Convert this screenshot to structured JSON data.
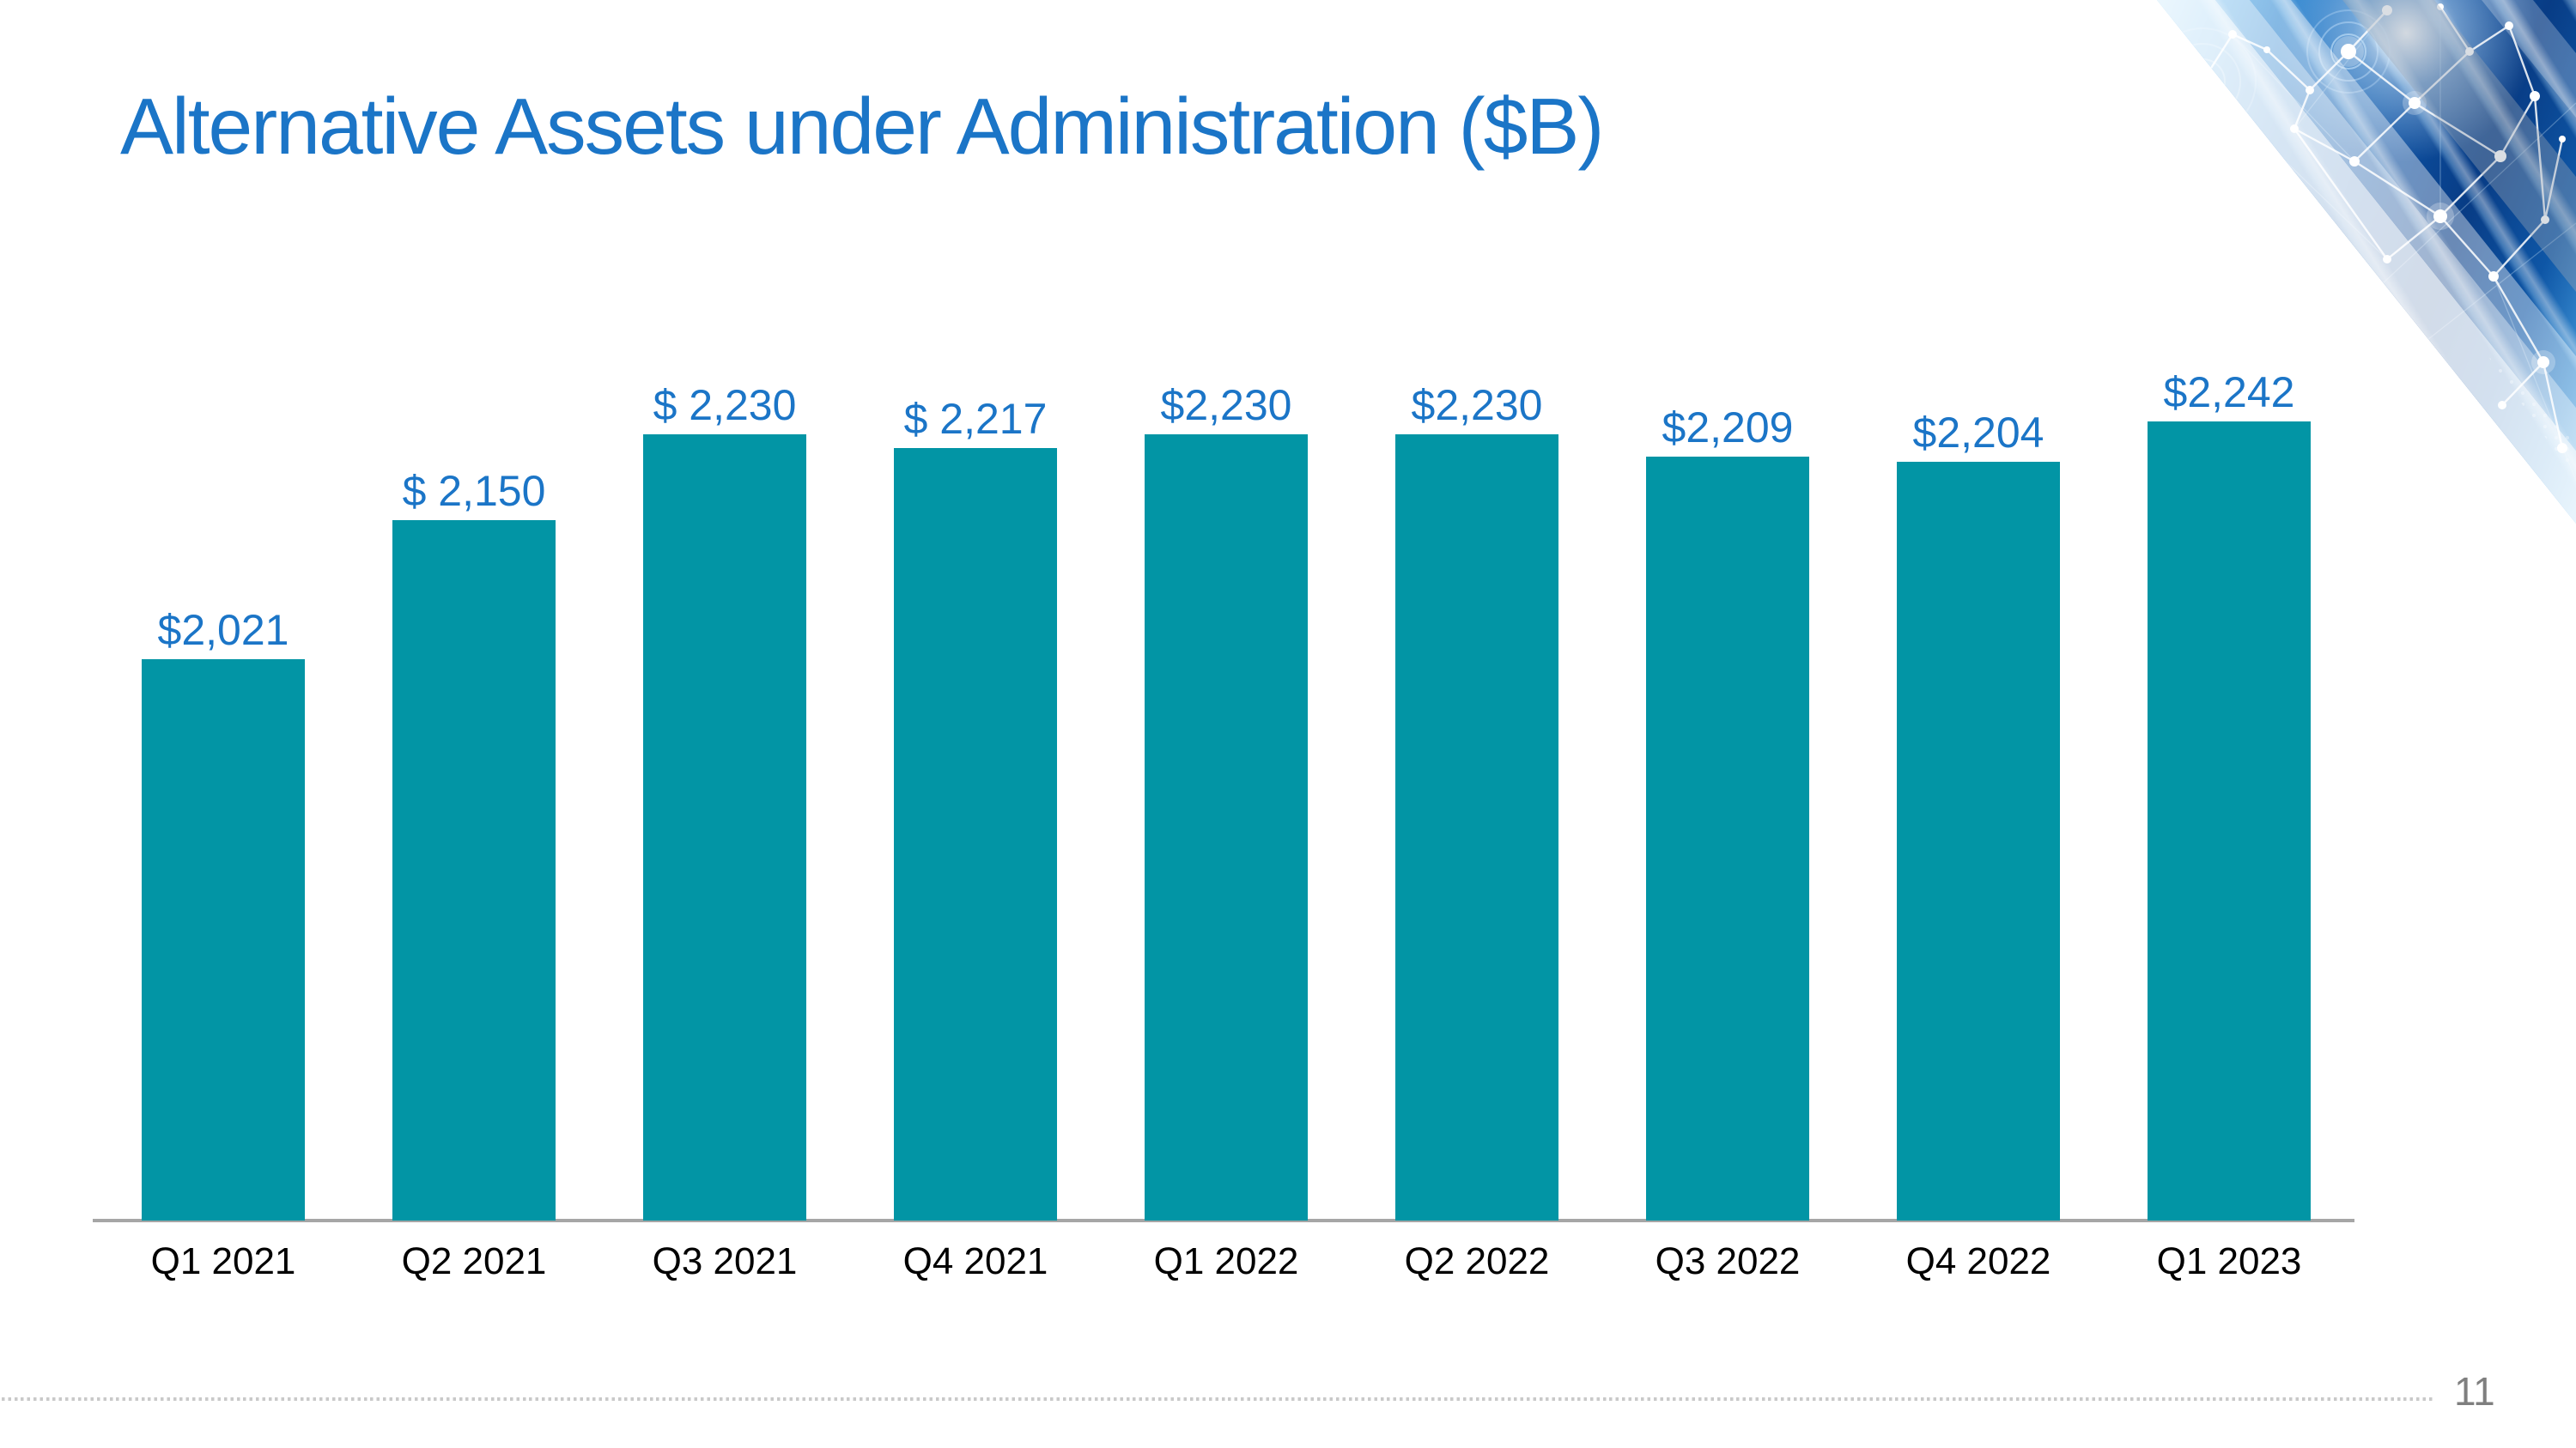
{
  "slide": {
    "title": "Alternative Assets under Administration ($B)",
    "page_number": "11"
  },
  "chart_data": {
    "type": "bar",
    "title": "Alternative Assets under Administration ($B)",
    "categories": [
      "Q1 2021",
      "Q2 2021",
      "Q3 2021",
      "Q4 2021",
      "Q1 2022",
      "Q2 2022",
      "Q3 2022",
      "Q4 2022",
      "Q1 2023"
    ],
    "values": [
      2021,
      2150,
      2230,
      2217,
      2230,
      2230,
      2209,
      2204,
      2242
    ],
    "value_labels": [
      "$2,021",
      "$ 2,150",
      "$ 2,230",
      "$ 2,217",
      "$2,230",
      "$2,230",
      "$2,209",
      "$2,204",
      "$2,242"
    ],
    "xlabel": "",
    "ylabel": "",
    "ylim": [
      1500,
      2300
    ],
    "grid": false,
    "legend": false,
    "value_axis_hidden": true,
    "bar_color": "#0295a5",
    "value_label_color": "#1b75c7",
    "category_label_color": "#000000",
    "axis_line_color": "#a6a6a6",
    "title_color": "#1b75c7"
  }
}
